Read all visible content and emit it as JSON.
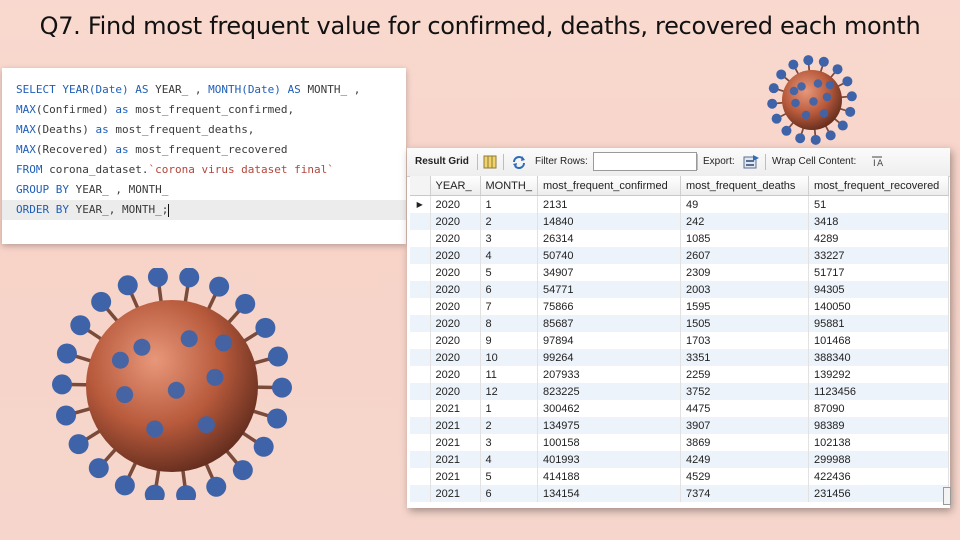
{
  "slide": {
    "title": "Q7. Find most frequent value for confirmed, deaths, recovered each month"
  },
  "editor": {
    "lines": [
      [
        {
          "t": "SELECT ",
          "k": "kw"
        },
        {
          "t": "YEAR(Date) ",
          "k": "kw"
        },
        {
          "t": "AS ",
          "k": "kw"
        },
        {
          "t": "YEAR_ , ",
          "k": ""
        },
        {
          "t": "MONTH(Date) ",
          "k": "kw"
        },
        {
          "t": "AS ",
          "k": "kw"
        },
        {
          "t": "MONTH_ ,",
          "k": ""
        }
      ],
      [
        {
          "t": "MAX",
          "k": "kw"
        },
        {
          "t": "(Confirmed) ",
          "k": ""
        },
        {
          "t": "as ",
          "k": "kw"
        },
        {
          "t": "most_frequent_confirmed,",
          "k": ""
        }
      ],
      [
        {
          "t": "MAX",
          "k": "kw"
        },
        {
          "t": "(Deaths) ",
          "k": ""
        },
        {
          "t": "as ",
          "k": "kw"
        },
        {
          "t": "most_frequent_deaths,",
          "k": ""
        }
      ],
      [
        {
          "t": "MAX",
          "k": "kw"
        },
        {
          "t": "(Recovered) ",
          "k": ""
        },
        {
          "t": "as ",
          "k": "kw"
        },
        {
          "t": "most_frequent_recovered",
          "k": ""
        }
      ],
      [
        {
          "t": "FROM ",
          "k": "kw"
        },
        {
          "t": "corona_dataset.",
          "k": ""
        },
        {
          "t": "`corona virus dataset final`",
          "k": "str"
        }
      ],
      [
        {
          "t": "GROUP BY ",
          "k": "kw"
        },
        {
          "t": "YEAR_ , MONTH_",
          "k": ""
        }
      ],
      [
        {
          "t": "ORDER BY ",
          "k": "kw"
        },
        {
          "t": "YEAR_, MONTH_;",
          "k": ""
        }
      ]
    ]
  },
  "toolbar": {
    "result_grid_label": "Result Grid",
    "filter_rows_label": "Filter Rows:",
    "filter_rows_value": "",
    "export_label": "Export:",
    "wrap_label": "Wrap Cell Content:",
    "grid_icon": "grid-icon",
    "refresh_icon": "refresh-icon",
    "export_icon": "export-icon",
    "wrap_icon": "wrap-icon"
  },
  "grid": {
    "columns": [
      "YEAR_",
      "MONTH_",
      "most_frequent_confirmed",
      "most_frequent_deaths",
      "most_frequent_recovered"
    ],
    "current_row_marker": "▶",
    "rows": [
      [
        "2020",
        "1",
        "2131",
        "49",
        "51"
      ],
      [
        "2020",
        "2",
        "14840",
        "242",
        "3418"
      ],
      [
        "2020",
        "3",
        "26314",
        "1085",
        "4289"
      ],
      [
        "2020",
        "4",
        "50740",
        "2607",
        "33227"
      ],
      [
        "2020",
        "5",
        "34907",
        "2309",
        "51717"
      ],
      [
        "2020",
        "6",
        "54771",
        "2003",
        "94305"
      ],
      [
        "2020",
        "7",
        "75866",
        "1595",
        "140050"
      ],
      [
        "2020",
        "8",
        "85687",
        "1505",
        "95881"
      ],
      [
        "2020",
        "9",
        "97894",
        "1703",
        "101468"
      ],
      [
        "2020",
        "10",
        "99264",
        "3351",
        "388340"
      ],
      [
        "2020",
        "11",
        "207933",
        "2259",
        "139292"
      ],
      [
        "2020",
        "12",
        "823225",
        "3752",
        "1123456"
      ],
      [
        "2021",
        "1",
        "300462",
        "4475",
        "87090"
      ],
      [
        "2021",
        "2",
        "134975",
        "3907",
        "98389"
      ],
      [
        "2021",
        "3",
        "100158",
        "3869",
        "102138"
      ],
      [
        "2021",
        "4",
        "401993",
        "4249",
        "299988"
      ],
      [
        "2021",
        "5",
        "414188",
        "4529",
        "422436"
      ],
      [
        "2021",
        "6",
        "134154",
        "7374",
        "231456"
      ]
    ]
  },
  "colors": {
    "keyword": "#1e5eb8",
    "string": "#b5453a",
    "virus_body": "#b85a3c",
    "virus_spike": "#3f63a8"
  }
}
